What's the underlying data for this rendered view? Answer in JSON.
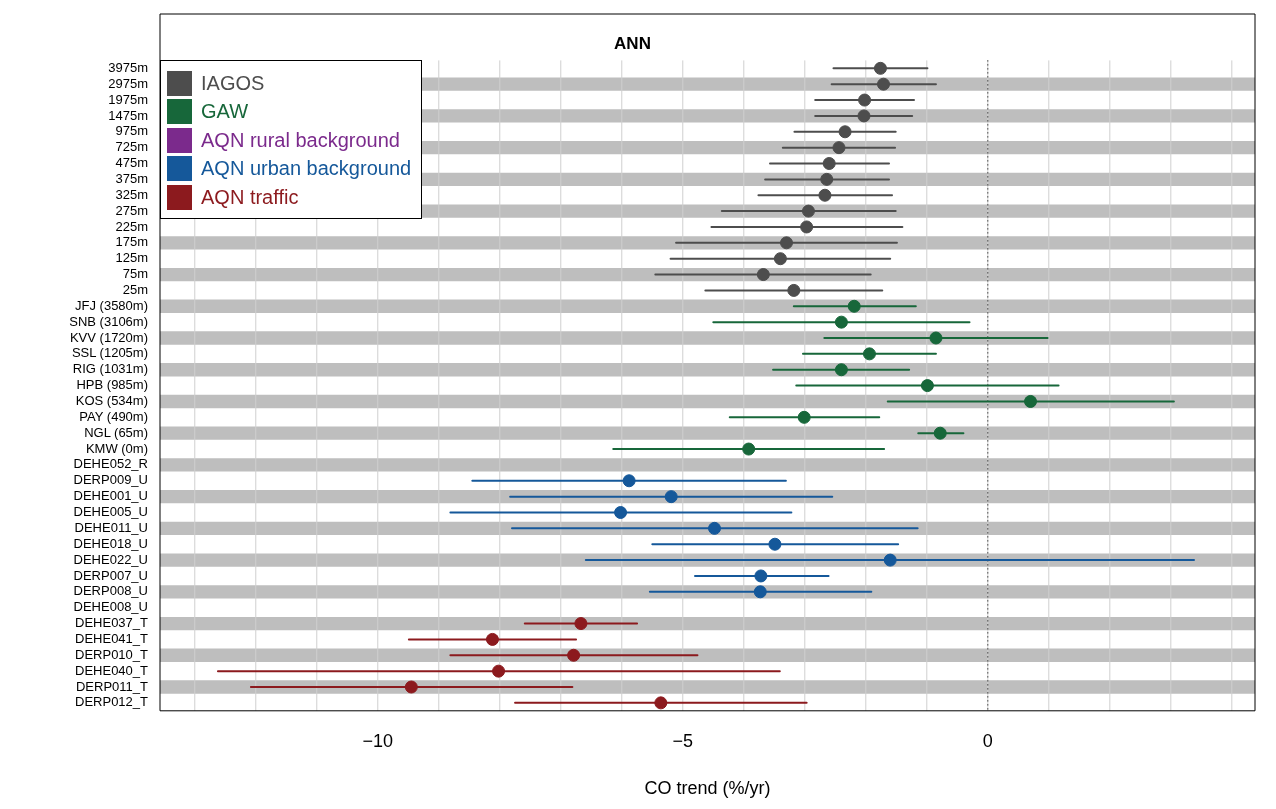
{
  "chart_data": {
    "type": "scatter",
    "orientation": "horizontal",
    "title": "ANN",
    "xlabel": "CO trend (%/yr)",
    "categories": [
      "3975m",
      "2975m",
      "1975m",
      "1475m",
      "975m",
      "725m",
      "475m",
      "375m",
      "325m",
      "275m",
      "225m",
      "175m",
      "125m",
      "75m",
      "25m",
      "JFJ (3580m)",
      "SNB (3106m)",
      "KVV (1720m)",
      "SSL (1205m)",
      "RIG (1031m)",
      "HPB (985m)",
      "KOS (534m)",
      "PAY (490m)",
      "NGL (65m)",
      "KMW (0m)",
      "DEHE052_R",
      "DERP009_U",
      "DEHE001_U",
      "DEHE005_U",
      "DEHE011_U",
      "DEHE018_U",
      "DEHE022_U",
      "DERP007_U",
      "DERP008_U",
      "DEHE008_U",
      "DEHE037_T",
      "DEHE041_T",
      "DERP010_T",
      "DEHE040_T",
      "DERP011_T",
      "DERP012_T"
    ],
    "series": [
      {
        "name": "IAGOS",
        "color": "#4d4d4d",
        "values": [
          -1.76,
          -1.71,
          -2.02,
          -2.03,
          -2.34,
          -2.44,
          -2.6,
          -2.64,
          -2.67,
          -2.94,
          -2.97,
          -3.3,
          -3.4,
          -3.68,
          -3.18,
          null,
          null,
          null,
          null,
          null,
          null,
          null,
          null,
          null,
          null,
          null,
          null,
          null,
          null,
          null,
          null,
          null,
          null,
          null,
          null,
          null,
          null,
          null,
          null,
          null,
          null
        ],
        "errors": [
          [
            -2.53,
            -0.99
          ],
          [
            -2.56,
            -0.85
          ],
          [
            -2.83,
            -1.21
          ],
          [
            -2.83,
            -1.24
          ],
          [
            -3.17,
            -1.51
          ],
          [
            -3.36,
            -1.52
          ],
          [
            -3.57,
            -1.62
          ],
          [
            -3.65,
            -1.62
          ],
          [
            -3.76,
            -1.57
          ],
          [
            -4.36,
            -1.51
          ],
          [
            -4.53,
            -1.4
          ],
          [
            -5.11,
            -1.49
          ],
          [
            -5.2,
            -1.6
          ],
          [
            -5.45,
            -1.92
          ],
          [
            -4.63,
            -1.73
          ],
          null,
          null,
          null,
          null,
          null,
          null,
          null,
          null,
          null,
          null,
          null,
          null,
          null,
          null,
          null,
          null,
          null,
          null,
          null,
          null,
          null,
          null,
          null,
          null,
          null,
          null
        ]
      },
      {
        "name": "GAW",
        "color": "#17673a",
        "values": [
          null,
          null,
          null,
          null,
          null,
          null,
          null,
          null,
          null,
          null,
          null,
          null,
          null,
          null,
          null,
          -2.19,
          -2.4,
          -0.85,
          -1.94,
          -2.4,
          -0.99,
          0.7,
          -3.01,
          -0.78,
          -3.92,
          null,
          null,
          null,
          null,
          null,
          null,
          null,
          null,
          null,
          null,
          null,
          null,
          null,
          null,
          null,
          null
        ],
        "errors": [
          null,
          null,
          null,
          null,
          null,
          null,
          null,
          null,
          null,
          null,
          null,
          null,
          null,
          null,
          null,
          [
            -3.18,
            -1.18
          ],
          [
            -4.5,
            -0.3
          ],
          [
            -2.68,
            0.98
          ],
          [
            -3.03,
            -0.85
          ],
          [
            -3.52,
            -1.29
          ],
          [
            -3.14,
            1.16
          ],
          [
            -1.64,
            3.05
          ],
          [
            -4.23,
            -1.78
          ],
          [
            -1.14,
            -0.4
          ],
          [
            -6.14,
            -1.7
          ],
          null,
          null,
          null,
          null,
          null,
          null,
          null,
          null,
          null,
          null,
          null,
          null,
          null,
          null,
          null,
          null
        ]
      },
      {
        "name": "AQN rural background",
        "color": "#7b2a8c",
        "values": [
          null,
          null,
          null,
          null,
          null,
          null,
          null,
          null,
          null,
          null,
          null,
          null,
          null,
          null,
          null,
          null,
          null,
          null,
          null,
          null,
          null,
          null,
          null,
          null,
          null,
          null,
          null,
          null,
          null,
          null,
          null,
          null,
          null,
          null,
          null,
          null,
          null,
          null,
          null,
          null,
          null
        ]
      },
      {
        "name": "AQN urban background",
        "color": "#15589a",
        "values": [
          null,
          null,
          null,
          null,
          null,
          null,
          null,
          null,
          null,
          null,
          null,
          null,
          null,
          null,
          null,
          null,
          null,
          null,
          null,
          null,
          null,
          null,
          null,
          null,
          null,
          null,
          -5.88,
          -5.19,
          -6.02,
          -4.48,
          -3.49,
          -1.6,
          -3.72,
          -3.73,
          null,
          null,
          null,
          null,
          null,
          null,
          null
        ],
        "errors": [
          null,
          null,
          null,
          null,
          null,
          null,
          null,
          null,
          null,
          null,
          null,
          null,
          null,
          null,
          null,
          null,
          null,
          null,
          null,
          null,
          null,
          null,
          null,
          null,
          null,
          null,
          [
            -8.45,
            -3.31
          ],
          [
            -7.83,
            -2.55
          ],
          [
            -8.81,
            -3.22
          ],
          [
            -7.8,
            -1.15
          ],
          [
            -5.5,
            -1.47
          ],
          [
            -6.59,
            3.38
          ],
          [
            -4.8,
            -2.61
          ],
          [
            -5.54,
            -1.91
          ],
          null,
          null,
          null,
          null,
          null,
          null,
          null
        ]
      },
      {
        "name": "AQN traffic",
        "color": "#8c1a1e",
        "values": [
          null,
          null,
          null,
          null,
          null,
          null,
          null,
          null,
          null,
          null,
          null,
          null,
          null,
          null,
          null,
          null,
          null,
          null,
          null,
          null,
          null,
          null,
          null,
          null,
          null,
          null,
          null,
          null,
          null,
          null,
          null,
          null,
          null,
          null,
          null,
          -6.67,
          -8.12,
          -6.79,
          -8.02,
          -9.45,
          -5.36
        ],
        "errors": [
          null,
          null,
          null,
          null,
          null,
          null,
          null,
          null,
          null,
          null,
          null,
          null,
          null,
          null,
          null,
          null,
          null,
          null,
          null,
          null,
          null,
          null,
          null,
          null,
          null,
          null,
          null,
          null,
          null,
          null,
          null,
          null,
          null,
          null,
          null,
          [
            -7.59,
            -5.75
          ],
          [
            -9.49,
            -6.75
          ],
          [
            -8.81,
            -4.76
          ],
          [
            -12.62,
            -3.41
          ],
          [
            -12.08,
            -6.81
          ],
          [
            -7.75,
            -2.97
          ]
        ]
      }
    ],
    "xlim": [
      -13.57,
      4.38
    ],
    "xticks": [
      {
        "value": -13,
        "label": null
      },
      {
        "value": -12,
        "label": null
      },
      {
        "value": -11,
        "label": null
      },
      {
        "value": -10,
        "label": "−10"
      },
      {
        "value": -9,
        "label": null
      },
      {
        "value": -8,
        "label": null
      },
      {
        "value": -7,
        "label": null
      },
      {
        "value": -6,
        "label": null
      },
      {
        "value": -5,
        "label": "−5"
      },
      {
        "value": -4,
        "label": null
      },
      {
        "value": -3,
        "label": null
      },
      {
        "value": -2,
        "label": null
      },
      {
        "value": -1,
        "label": null
      },
      {
        "value": 0,
        "label": "0"
      },
      {
        "value": 1,
        "label": null
      },
      {
        "value": 2,
        "label": null
      },
      {
        "value": 3,
        "label": null
      },
      {
        "value": 4,
        "label": null
      }
    ],
    "ref_lines": [
      {
        "axis": "x",
        "value": 0,
        "color": "#000000",
        "line_style": "dotted"
      }
    ],
    "grid": "x",
    "legend": "top left",
    "marker": "circle"
  }
}
